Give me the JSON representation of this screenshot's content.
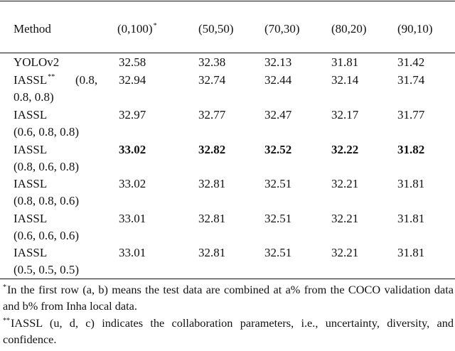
{
  "table": {
    "header": {
      "method": "Method",
      "columns": [
        "(0,100)",
        "(50,50)",
        "(70,30)",
        "(80,20)",
        "(90,10)"
      ],
      "first_column_mark": "*"
    },
    "rows": [
      {
        "method_line1": "YOLOv2",
        "method_mark": "",
        "method_line1_suffix": "",
        "method_line2": "",
        "values": [
          "32.58",
          "32.38",
          "32.13",
          "31.81",
          "31.42"
        ],
        "bold": false
      },
      {
        "method_line1": "IASSL",
        "method_mark": "**",
        "method_line1_suffix": "(0.8,",
        "method_line2": "0.8, 0.8)",
        "values": [
          "32.94",
          "32.74",
          "32.44",
          "32.14",
          "31.74"
        ],
        "bold": false
      },
      {
        "method_line1": "IASSL",
        "method_mark": "",
        "method_line1_suffix": "",
        "method_line2": "(0.6, 0.8, 0.8)",
        "values": [
          "32.97",
          "32.77",
          "32.47",
          "32.17",
          "31.77"
        ],
        "bold": false
      },
      {
        "method_line1": "IASSL",
        "method_mark": "",
        "method_line1_suffix": "",
        "method_line2": "(0.8, 0.6, 0.8)",
        "values": [
          "33.02",
          "32.82",
          "32.52",
          "32.22",
          "31.82"
        ],
        "bold": true
      },
      {
        "method_line1": "IASSL",
        "method_mark": "",
        "method_line1_suffix": "",
        "method_line2": "(0.8, 0.8, 0.6)",
        "values": [
          "33.02",
          "32.81",
          "32.51",
          "32.21",
          "31.81"
        ],
        "bold": false
      },
      {
        "method_line1": "IASSL",
        "method_mark": "",
        "method_line1_suffix": "",
        "method_line2": "(0.6, 0.6, 0.6)",
        "values": [
          "33.01",
          "32.81",
          "32.51",
          "32.21",
          "31.81"
        ],
        "bold": false
      },
      {
        "method_line1": "IASSL",
        "method_mark": "",
        "method_line1_suffix": "",
        "method_line2": "(0.5, 0.5, 0.5)",
        "values": [
          "33.01",
          "32.81",
          "32.51",
          "32.21",
          "31.81"
        ],
        "bold": false
      }
    ]
  },
  "footnotes": [
    {
      "mark": "*",
      "text": "In the first row (a, b) means the test data are combined at a% from the COCO validation data and b% from Inha local data."
    },
    {
      "mark": "**",
      "text": "IASSL (u, d, c) indicates the collaboration parameters, i.e., uncertainty, diversity, and confidence."
    }
  ]
}
